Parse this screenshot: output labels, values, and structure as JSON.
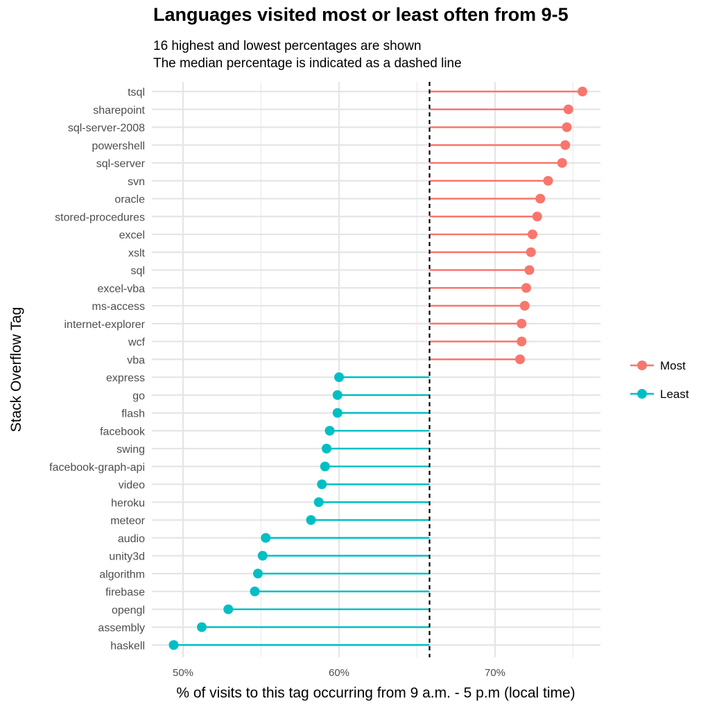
{
  "chart_data": {
    "type": "lollipop",
    "title": "Languages visited most or least often from 9-5",
    "subtitle_lines": [
      "16 highest and lowest percentages are shown",
      "The median percentage is indicated as a dashed line"
    ],
    "xlabel": "% of visits to this tag occurring from 9 a.m. - 5 p.m (local time)",
    "ylabel": "Stack Overflow Tag",
    "xlim": [
      48,
      77
    ],
    "x_ticks": [
      50,
      60,
      70
    ],
    "x_tick_labels": [
      "50%",
      "60%",
      "70%"
    ],
    "median": 65.8,
    "grid": true,
    "legend_position": "right",
    "series": [
      {
        "name": "Most",
        "color": "#F8766D",
        "categories": [
          "tsql",
          "sharepoint",
          "sql-server-2008",
          "powershell",
          "sql-server",
          "svn",
          "oracle",
          "stored-procedures",
          "excel",
          "xslt",
          "sql",
          "excel-vba",
          "ms-access",
          "internet-explorer",
          "wcf",
          "vba"
        ],
        "values": [
          75.6,
          74.7,
          74.6,
          74.5,
          74.3,
          73.4,
          72.9,
          72.7,
          72.4,
          72.3,
          72.2,
          72.0,
          71.9,
          71.7,
          71.7,
          71.6
        ]
      },
      {
        "name": "Least",
        "color": "#00BFC4",
        "categories": [
          "express",
          "go",
          "flash",
          "facebook",
          "swing",
          "facebook-graph-api",
          "video",
          "heroku",
          "meteor",
          "audio",
          "unity3d",
          "algorithm",
          "firebase",
          "opengl",
          "assembly",
          "haskell"
        ],
        "values": [
          60.0,
          59.9,
          59.9,
          59.4,
          59.2,
          59.1,
          58.9,
          58.7,
          58.2,
          55.3,
          55.1,
          54.8,
          54.6,
          52.9,
          51.2,
          49.4
        ]
      }
    ]
  }
}
